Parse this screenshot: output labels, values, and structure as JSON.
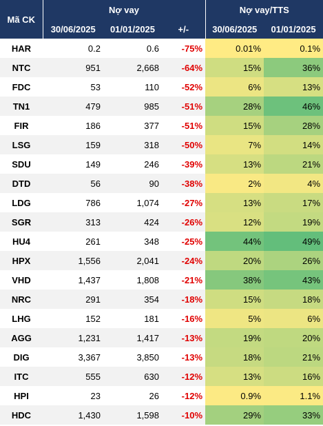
{
  "header": {
    "ticker": "Mã CK",
    "group1": "Nợ vay",
    "group2": "Nợ vay/TTS",
    "columns": [
      "30/06/2025",
      "01/01/2025",
      "+/-",
      "30/06/2025",
      "01/01/2025"
    ]
  },
  "table": {
    "rows": [
      [
        "HAR",
        "0.2",
        "0.6",
        "-75%",
        "0.01%",
        "0.1%"
      ],
      [
        "NTC",
        "951",
        "2,668",
        "-64%",
        "15%",
        "36%"
      ],
      [
        "FDC",
        "53",
        "110",
        "-52%",
        "6%",
        "13%"
      ],
      [
        "TN1",
        "479",
        "985",
        "-51%",
        "28%",
        "46%"
      ],
      [
        "FIR",
        "186",
        "377",
        "-51%",
        "15%",
        "28%"
      ],
      [
        "LSG",
        "159",
        "318",
        "-50%",
        "7%",
        "14%"
      ],
      [
        "SDU",
        "149",
        "246",
        "-39%",
        "13%",
        "21%"
      ],
      [
        "DTD",
        "56",
        "90",
        "-38%",
        "2%",
        "4%"
      ],
      [
        "LDG",
        "786",
        "1,074",
        "-27%",
        "13%",
        "17%"
      ],
      [
        "SGR",
        "313",
        "424",
        "-26%",
        "12%",
        "19%"
      ],
      [
        "HU4",
        "261",
        "348",
        "-25%",
        "44%",
        "49%"
      ],
      [
        "HPX",
        "1,556",
        "2,041",
        "-24%",
        "20%",
        "26%"
      ],
      [
        "VHD",
        "1,437",
        "1,808",
        "-21%",
        "38%",
        "43%"
      ],
      [
        "NRC",
        "291",
        "354",
        "-18%",
        "15%",
        "18%"
      ],
      [
        "LHG",
        "152",
        "181",
        "-16%",
        "5%",
        "6%"
      ],
      [
        "AGG",
        "1,231",
        "1,417",
        "-13%",
        "19%",
        "20%"
      ],
      [
        "DIG",
        "3,367",
        "3,850",
        "-13%",
        "18%",
        "21%"
      ],
      [
        "ITC",
        "555",
        "630",
        "-12%",
        "13%",
        "16%"
      ],
      [
        "HPI",
        "23",
        "26",
        "-12%",
        "0.9%",
        "1.1%"
      ],
      [
        "HDC",
        "1,430",
        "1,598",
        "-10%",
        "29%",
        "33%"
      ]
    ]
  }
}
